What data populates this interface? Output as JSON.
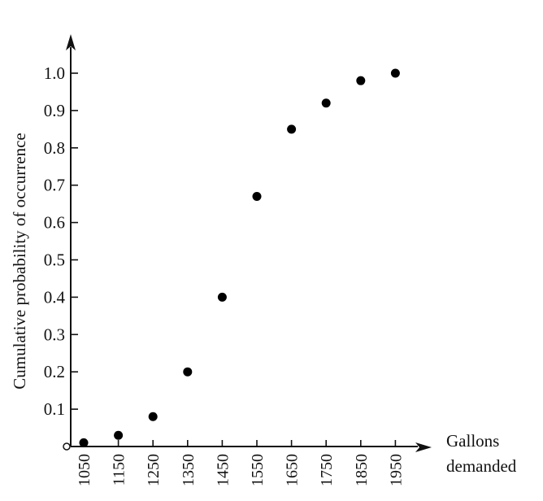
{
  "chart_data": {
    "type": "scatter",
    "title": "",
    "xlabel": [
      "Gallons",
      "demanded"
    ],
    "ylabel": "Cumulative probability of occurrence",
    "x_ticks": [
      "1050",
      "1150",
      "1250",
      "1350",
      "1450",
      "1550",
      "1650",
      "1750",
      "1850",
      "1950"
    ],
    "y_ticks": [
      "0.1",
      "0.2",
      "0.3",
      "0.4",
      "0.5",
      "0.6",
      "0.7",
      "0.8",
      "0.9",
      "1.0"
    ],
    "x": [
      1050,
      1150,
      1250,
      1350,
      1450,
      1550,
      1650,
      1750,
      1850,
      1950
    ],
    "y": [
      0.01,
      0.03,
      0.08,
      0.2,
      0.4,
      0.67,
      0.85,
      0.92,
      0.98,
      1.0
    ],
    "ylim": [
      0,
      1.0
    ],
    "grid": false,
    "marker_color": "#000000"
  }
}
